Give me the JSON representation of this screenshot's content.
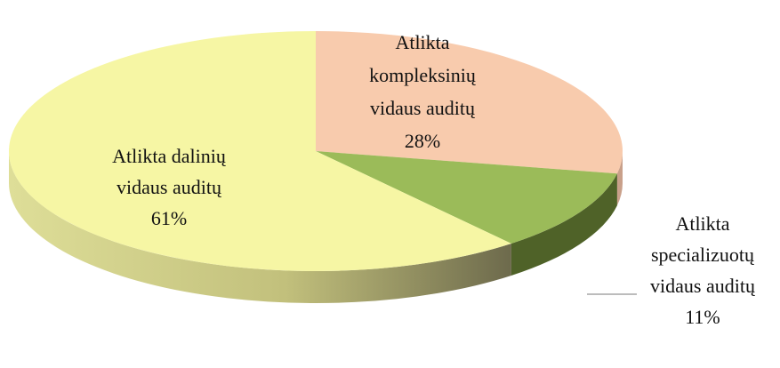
{
  "chart_data": {
    "type": "pie",
    "categories": [
      [
        "Atlikta",
        "kompleksinių",
        "vidaus auditų"
      ],
      [
        "Atlikta",
        "specializuotų",
        "vidaus auditų"
      ],
      [
        "Atlikta dalinių",
        "vidaus auditų"
      ]
    ],
    "values": [
      28,
      11,
      61
    ],
    "value_labels": [
      "28%",
      "11%",
      "61%"
    ],
    "colors": [
      "#f8cbad",
      "#9bbb59",
      "#f6f6a4"
    ],
    "side_colors": [
      "#c9a08a",
      "#4f6228",
      "url(#yellowSide)"
    ]
  }
}
